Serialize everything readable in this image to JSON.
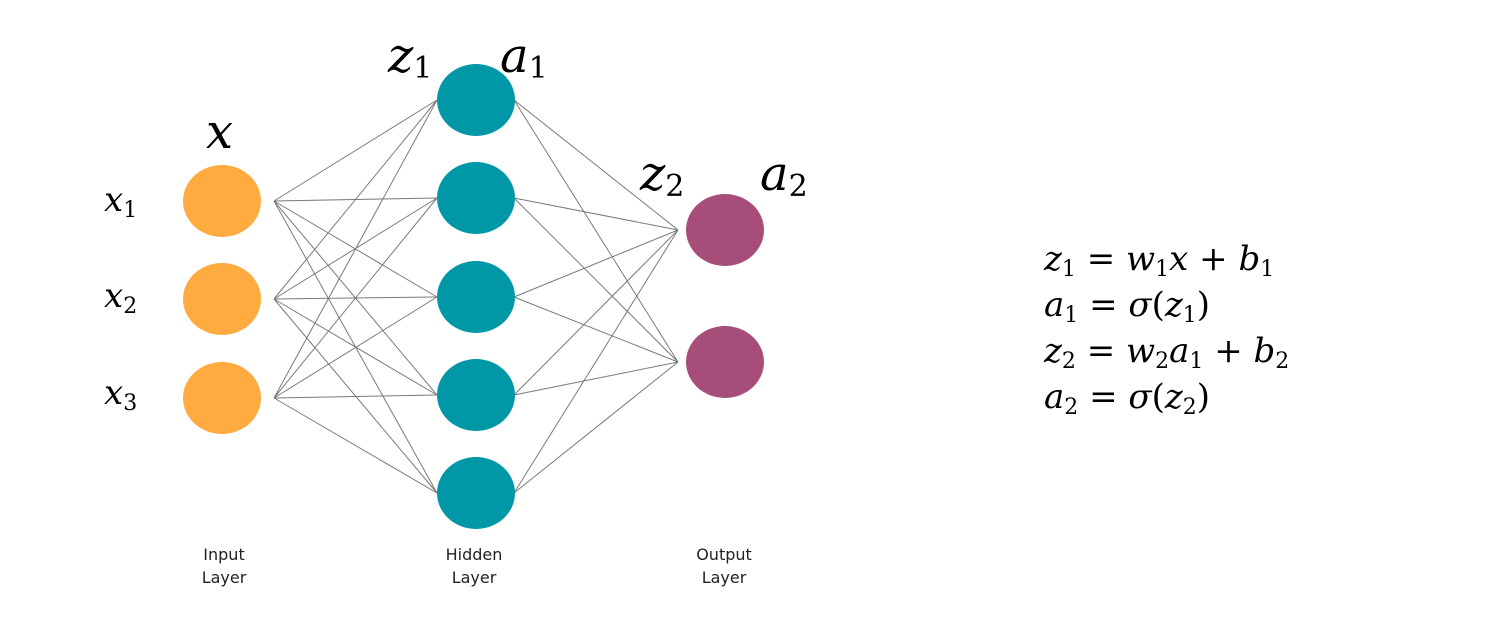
{
  "colors": {
    "input": "#ffab40",
    "hidden": "#0097a7",
    "output": "#a64d79",
    "edge": "#7a7a7a"
  },
  "layers": {
    "input": {
      "name_line1": "Input",
      "name_line2": "Layer",
      "vector_label": "x",
      "nodes": [
        {
          "base": "x",
          "sub": "1"
        },
        {
          "base": "x",
          "sub": "2"
        },
        {
          "base": "x",
          "sub": "3"
        }
      ]
    },
    "hidden": {
      "name_line1": "Hidden",
      "name_line2": "Layer",
      "pre_label": {
        "base": "z",
        "sub": "1"
      },
      "act_label": {
        "base": "a",
        "sub": "1"
      },
      "node_count": 5
    },
    "output": {
      "name_line1": "Output",
      "name_line2": "Layer",
      "pre_label": {
        "base": "z",
        "sub": "2"
      },
      "act_label": {
        "base": "a",
        "sub": "2"
      },
      "node_count": 2
    }
  },
  "equations": [
    {
      "lhs": {
        "base": "z",
        "sub": "1"
      },
      "eq": "=",
      "rhs": [
        {
          "t": "w",
          "s": "1"
        },
        {
          "t": "x"
        },
        {
          "o": " + "
        },
        {
          "t": "b",
          "s": "1"
        }
      ]
    },
    {
      "lhs": {
        "base": "a",
        "sub": "1"
      },
      "eq": "=",
      "rhs": [
        {
          "t": "σ"
        },
        {
          "o": "("
        },
        {
          "t": "z",
          "s": "1"
        },
        {
          "o": ")"
        }
      ]
    },
    {
      "lhs": {
        "base": "z",
        "sub": "2"
      },
      "eq": "=",
      "rhs": [
        {
          "t": "w",
          "s": "2"
        },
        {
          "t": "a",
          "s": "1"
        },
        {
          "o": " + "
        },
        {
          "t": "b",
          "s": "2"
        }
      ]
    },
    {
      "lhs": {
        "base": "a",
        "sub": "2"
      },
      "eq": "=",
      "rhs": [
        {
          "t": "σ"
        },
        {
          "o": "("
        },
        {
          "t": "z",
          "s": "2"
        },
        {
          "o": ")"
        }
      ]
    }
  ]
}
